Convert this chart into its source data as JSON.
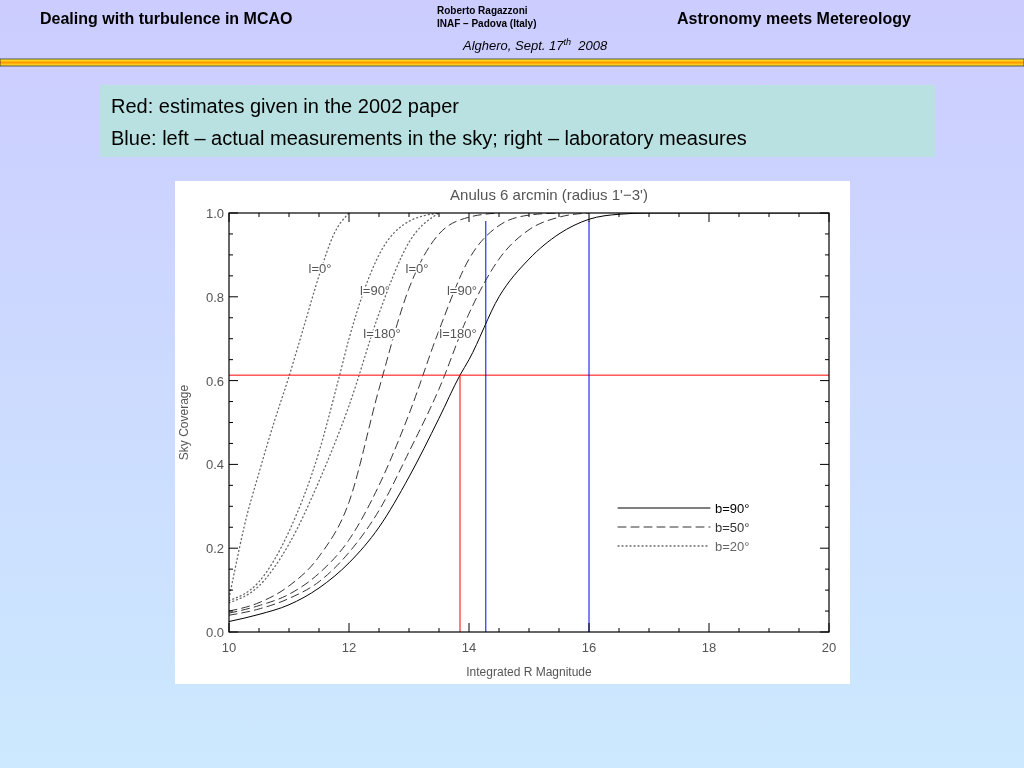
{
  "chart_data": {
    "type": "line",
    "title": "Anulus 6 arcmin (radius 1'−3')",
    "xlabel": "Integrated R Magnitude",
    "ylabel": "Sky Coverage",
    "xlim": [
      10,
      20
    ],
    "ylim": [
      0,
      1
    ],
    "xticks": [
      10,
      12,
      14,
      16,
      18,
      20
    ],
    "yticks": [
      {
        "value": 0,
        "label": "0.0"
      },
      {
        "value": 0.2,
        "label": "0.2"
      },
      {
        "value": 0.4,
        "label": "0.4"
      },
      {
        "value": 0.6,
        "label": "0.6"
      },
      {
        "value": 0.8,
        "label": "0.8"
      },
      {
        "value": 1,
        "label": "1.0"
      }
    ],
    "grid": false,
    "legend": "bottom right",
    "series": [
      {
        "name": "b=90°",
        "color": "#000000",
        "line_style": "solid",
        "x": [
          10,
          10.5,
          11,
          11.5,
          12,
          12.5,
          13,
          13.5,
          13.85,
          14,
          14.5,
          15,
          15.5,
          16,
          16.5,
          17,
          20
        ],
        "values": [
          0.025,
          0.042,
          0.065,
          0.105,
          0.165,
          0.25,
          0.37,
          0.51,
          0.613,
          0.65,
          0.8,
          0.89,
          0.95,
          0.985,
          0.997,
          1,
          1
        ]
      },
      {
        "name": "b=50°",
        "color": "#333333",
        "line_style": "dashed",
        "x": [
          10,
          10.5,
          11,
          11.5,
          12,
          12.5,
          13,
          13.5,
          14,
          14.5
        ],
        "values": [
          0.05,
          0.07,
          0.11,
          0.18,
          0.31,
          0.58,
          0.82,
          0.95,
          0.99,
          1
        ]
      },
      {
        "color": "#333333",
        "line_style": "dashed",
        "x": [
          10,
          10.5,
          11,
          11.5,
          12,
          12.5,
          13,
          13.5,
          14,
          14.5,
          15,
          15.5
        ],
        "values": [
          0.045,
          0.063,
          0.09,
          0.14,
          0.22,
          0.35,
          0.52,
          0.72,
          0.89,
          0.97,
          0.995,
          1
        ]
      },
      {
        "color": "#333333",
        "line_style": "dashed",
        "x": [
          10,
          10.5,
          11,
          11.5,
          12,
          12.5,
          13,
          13.5,
          14,
          14.5,
          15,
          15.5,
          16
        ],
        "values": [
          0.04,
          0.055,
          0.08,
          0.12,
          0.19,
          0.29,
          0.43,
          0.58,
          0.76,
          0.89,
          0.96,
          0.99,
          1
        ]
      },
      {
        "name": "b=20°",
        "color": "#666666",
        "line_style": "dotted",
        "x": [
          10,
          10.1,
          10.25,
          10.5,
          10.75,
          11,
          11.25,
          11.5,
          11.75,
          12
        ],
        "values": [
          0.08,
          0.15,
          0.25,
          0.38,
          0.5,
          0.61,
          0.73,
          0.85,
          0.95,
          1
        ]
      },
      {
        "color": "#666666",
        "line_style": "dotted",
        "x": [
          10,
          10.5,
          11,
          11.5,
          11.82,
          12,
          12.5,
          13,
          13.5
        ],
        "values": [
          0.075,
          0.12,
          0.24,
          0.43,
          0.6,
          0.7,
          0.9,
          0.98,
          1
        ]
      },
      {
        "color": "#666666",
        "line_style": "dotted",
        "x": [
          10,
          10.5,
          11,
          11.5,
          12,
          12.5,
          13,
          13.5
        ],
        "values": [
          0.07,
          0.11,
          0.21,
          0.36,
          0.54,
          0.76,
          0.93,
          1
        ]
      },
      {
        "color": "#ff0000",
        "line_style": "solid",
        "x": [
          13.85,
          13.85
        ],
        "values": [
          0,
          0.613
        ]
      }
    ],
    "ref_lines": [
      {
        "axis": "y",
        "value": 0.613,
        "color": "#ff0000"
      },
      {
        "axis": "x",
        "value": 14.28,
        "color": "#0000ff"
      },
      {
        "axis": "x",
        "value": 16,
        "color": "#0000ff"
      }
    ],
    "annotations": [
      "Dealing with turbulence in MCAO",
      "Roberto Ragazzoni",
      "INAF – Padova (Italy)",
      "Alghero, Sept. 17$^{th}$  2008",
      "Astronomy meets Metereology",
      "Red: estimates given in the 2002 paper",
      "Blue: left – actual measurements in the sky; right – laboratory measures",
      "l=0°",
      "l=90°",
      "l=180°",
      "l=0°",
      "l=90°",
      "l=180°"
    ]
  }
}
